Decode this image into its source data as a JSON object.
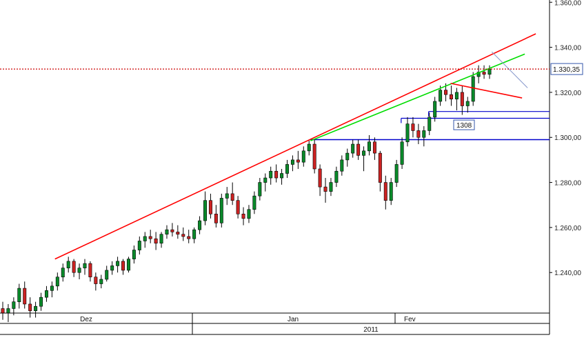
{
  "chart_data": {
    "type": "candlestick",
    "title": "",
    "y_axis": {
      "ticks": [
        "1.240,00",
        "1.260,00",
        "1.280,00",
        "1.300,00",
        "1.320,00",
        "1.340,00",
        "1.360,00"
      ],
      "tick_values": [
        1240,
        1260,
        1280,
        1300,
        1320,
        1340,
        1360
      ],
      "ylim": [
        1222,
        1361
      ],
      "position": "right"
    },
    "x_axis": {
      "months": [
        "Dez",
        "Jan",
        "Fev"
      ],
      "year": "2011"
    },
    "current_price": {
      "value": 1330.35,
      "label": "1.330,35",
      "line_color": "#cc0000"
    },
    "annotations": [
      {
        "label": "1308",
        "value": 1308
      }
    ],
    "horizontal_levels": [
      {
        "value": 1299.0,
        "color": "#0000cc"
      },
      {
        "value": 1308.5,
        "color": "#0000cc"
      },
      {
        "value": 1311.5,
        "color": "#0000cc"
      }
    ],
    "trendlines": [
      {
        "name": "upper",
        "color": "#ff0000",
        "from": [
          0.1,
          1246
        ],
        "to": [
          0.975,
          1346
        ]
      },
      {
        "name": "mid",
        "color": "#00dd00",
        "from": [
          0.565,
          1298.5
        ],
        "to": [
          0.955,
          1337
        ]
      },
      {
        "name": "pennant",
        "color": "#ff0000",
        "from": [
          0.82,
          1324
        ],
        "to": [
          0.95,
          1317.5
        ]
      },
      {
        "name": "projection",
        "color": "#8899cc",
        "from": [
          0.895,
          1338
        ],
        "to": [
          0.96,
          1322
        ]
      }
    ],
    "candles": [
      {
        "o": 1224,
        "h": 1227,
        "l": 1219,
        "c": 1222
      },
      {
        "o": 1222,
        "h": 1226,
        "l": 1218,
        "c": 1224
      },
      {
        "o": 1224,
        "h": 1229,
        "l": 1221,
        "c": 1227
      },
      {
        "o": 1227,
        "h": 1235,
        "l": 1224,
        "c": 1233
      },
      {
        "o": 1233,
        "h": 1236,
        "l": 1224,
        "c": 1226
      },
      {
        "o": 1226,
        "h": 1229,
        "l": 1220,
        "c": 1223
      },
      {
        "o": 1223,
        "h": 1227,
        "l": 1220,
        "c": 1225
      },
      {
        "o": 1225,
        "h": 1231,
        "l": 1223,
        "c": 1229
      },
      {
        "o": 1229,
        "h": 1234,
        "l": 1227,
        "c": 1232
      },
      {
        "o": 1232,
        "h": 1236,
        "l": 1229,
        "c": 1234
      },
      {
        "o": 1234,
        "h": 1240,
        "l": 1232,
        "c": 1238
      },
      {
        "o": 1238,
        "h": 1244,
        "l": 1236,
        "c": 1242
      },
      {
        "o": 1242,
        "h": 1247,
        "l": 1240,
        "c": 1245
      },
      {
        "o": 1245,
        "h": 1246,
        "l": 1238,
        "c": 1240
      },
      {
        "o": 1240,
        "h": 1244,
        "l": 1237,
        "c": 1242
      },
      {
        "o": 1242,
        "h": 1246,
        "l": 1239,
        "c": 1244
      },
      {
        "o": 1244,
        "h": 1245,
        "l": 1236,
        "c": 1238
      },
      {
        "o": 1238,
        "h": 1240,
        "l": 1232,
        "c": 1235
      },
      {
        "o": 1235,
        "h": 1239,
        "l": 1233,
        "c": 1237
      },
      {
        "o": 1237,
        "h": 1243,
        "l": 1236,
        "c": 1241
      },
      {
        "o": 1241,
        "h": 1245,
        "l": 1239,
        "c": 1243
      },
      {
        "o": 1243,
        "h": 1247,
        "l": 1240,
        "c": 1245
      },
      {
        "o": 1245,
        "h": 1246,
        "l": 1239,
        "c": 1241
      },
      {
        "o": 1241,
        "h": 1247,
        "l": 1240,
        "c": 1246
      },
      {
        "o": 1246,
        "h": 1252,
        "l": 1244,
        "c": 1250
      },
      {
        "o": 1250,
        "h": 1256,
        "l": 1248,
        "c": 1254
      },
      {
        "o": 1254,
        "h": 1258,
        "l": 1251,
        "c": 1256
      },
      {
        "o": 1256,
        "h": 1259,
        "l": 1253,
        "c": 1255
      },
      {
        "o": 1255,
        "h": 1258,
        "l": 1250,
        "c": 1253
      },
      {
        "o": 1253,
        "h": 1258,
        "l": 1251,
        "c": 1257
      },
      {
        "o": 1257,
        "h": 1261,
        "l": 1255,
        "c": 1259
      },
      {
        "o": 1259,
        "h": 1262,
        "l": 1256,
        "c": 1258
      },
      {
        "o": 1258,
        "h": 1261,
        "l": 1255,
        "c": 1257
      },
      {
        "o": 1257,
        "h": 1260,
        "l": 1254,
        "c": 1256
      },
      {
        "o": 1256,
        "h": 1259,
        "l": 1253,
        "c": 1255
      },
      {
        "o": 1255,
        "h": 1260,
        "l": 1253,
        "c": 1259
      },
      {
        "o": 1259,
        "h": 1265,
        "l": 1257,
        "c": 1263
      },
      {
        "o": 1263,
        "h": 1276,
        "l": 1261,
        "c": 1272
      },
      {
        "o": 1272,
        "h": 1275,
        "l": 1264,
        "c": 1266
      },
      {
        "o": 1266,
        "h": 1270,
        "l": 1260,
        "c": 1262
      },
      {
        "o": 1262,
        "h": 1275,
        "l": 1260,
        "c": 1273
      },
      {
        "o": 1273,
        "h": 1278,
        "l": 1270,
        "c": 1275
      },
      {
        "o": 1275,
        "h": 1280,
        "l": 1270,
        "c": 1272
      },
      {
        "o": 1272,
        "h": 1274,
        "l": 1264,
        "c": 1266
      },
      {
        "o": 1266,
        "h": 1269,
        "l": 1261,
        "c": 1264
      },
      {
        "o": 1264,
        "h": 1270,
        "l": 1262,
        "c": 1268
      },
      {
        "o": 1268,
        "h": 1276,
        "l": 1266,
        "c": 1274
      },
      {
        "o": 1274,
        "h": 1282,
        "l": 1272,
        "c": 1280
      },
      {
        "o": 1280,
        "h": 1284,
        "l": 1276,
        "c": 1282
      },
      {
        "o": 1282,
        "h": 1287,
        "l": 1279,
        "c": 1285
      },
      {
        "o": 1285,
        "h": 1288,
        "l": 1280,
        "c": 1282
      },
      {
        "o": 1282,
        "h": 1286,
        "l": 1279,
        "c": 1284
      },
      {
        "o": 1284,
        "h": 1290,
        "l": 1282,
        "c": 1288
      },
      {
        "o": 1288,
        "h": 1292,
        "l": 1285,
        "c": 1290
      },
      {
        "o": 1290,
        "h": 1294,
        "l": 1286,
        "c": 1289
      },
      {
        "o": 1289,
        "h": 1296,
        "l": 1287,
        "c": 1294
      },
      {
        "o": 1294,
        "h": 1299,
        "l": 1292,
        "c": 1297
      },
      {
        "o": 1297,
        "h": 1299,
        "l": 1284,
        "c": 1286
      },
      {
        "o": 1286,
        "h": 1288,
        "l": 1274,
        "c": 1278
      },
      {
        "o": 1278,
        "h": 1282,
        "l": 1271,
        "c": 1276
      },
      {
        "o": 1276,
        "h": 1282,
        "l": 1274,
        "c": 1280
      },
      {
        "o": 1280,
        "h": 1287,
        "l": 1278,
        "c": 1285
      },
      {
        "o": 1285,
        "h": 1292,
        "l": 1283,
        "c": 1290
      },
      {
        "o": 1290,
        "h": 1295,
        "l": 1287,
        "c": 1293
      },
      {
        "o": 1293,
        "h": 1299,
        "l": 1291,
        "c": 1297
      },
      {
        "o": 1297,
        "h": 1299,
        "l": 1290,
        "c": 1292
      },
      {
        "o": 1292,
        "h": 1296,
        "l": 1285,
        "c": 1294
      },
      {
        "o": 1294,
        "h": 1301,
        "l": 1292,
        "c": 1298
      },
      {
        "o": 1298,
        "h": 1300,
        "l": 1290,
        "c": 1293
      },
      {
        "o": 1293,
        "h": 1294,
        "l": 1276,
        "c": 1280
      },
      {
        "o": 1280,
        "h": 1283,
        "l": 1268,
        "c": 1272
      },
      {
        "o": 1272,
        "h": 1282,
        "l": 1270,
        "c": 1280
      },
      {
        "o": 1280,
        "h": 1290,
        "l": 1278,
        "c": 1288
      },
      {
        "o": 1288,
        "h": 1300,
        "l": 1286,
        "c": 1298
      },
      {
        "o": 1298,
        "h": 1309,
        "l": 1296,
        "c": 1306
      },
      {
        "o": 1306,
        "h": 1309,
        "l": 1300,
        "c": 1303
      },
      {
        "o": 1303,
        "h": 1306,
        "l": 1297,
        "c": 1300
      },
      {
        "o": 1300,
        "h": 1305,
        "l": 1296,
        "c": 1303
      },
      {
        "o": 1303,
        "h": 1311,
        "l": 1301,
        "c": 1309
      },
      {
        "o": 1309,
        "h": 1318,
        "l": 1307,
        "c": 1316
      },
      {
        "o": 1316,
        "h": 1323,
        "l": 1314,
        "c": 1321
      },
      {
        "o": 1321,
        "h": 1324,
        "l": 1316,
        "c": 1319
      },
      {
        "o": 1319,
        "h": 1323,
        "l": 1314,
        "c": 1317
      },
      {
        "o": 1317,
        "h": 1322,
        "l": 1312,
        "c": 1320
      },
      {
        "o": 1320,
        "h": 1323,
        "l": 1310,
        "c": 1314
      },
      {
        "o": 1314,
        "h": 1318,
        "l": 1311,
        "c": 1316
      },
      {
        "o": 1316,
        "h": 1329,
        "l": 1314,
        "c": 1327
      },
      {
        "o": 1327,
        "h": 1332,
        "l": 1324,
        "c": 1329
      },
      {
        "o": 1329,
        "h": 1332,
        "l": 1326,
        "c": 1328
      },
      {
        "o": 1328,
        "h": 1332,
        "l": 1326,
        "c": 1330.35
      }
    ]
  }
}
